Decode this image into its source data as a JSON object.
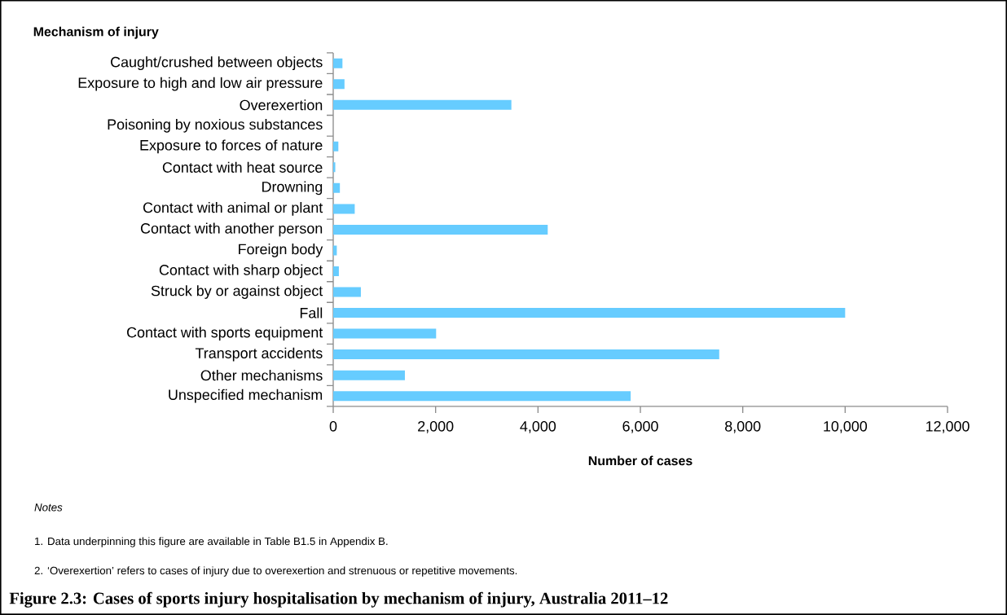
{
  "chart_data": {
    "type": "bar",
    "orientation": "horizontal",
    "title": "Figure 2.3: Cases of sports injury hospitalisation by mechanism of injury, Australia 2011–12",
    "xlabel": "Number of cases",
    "ylabel": "Mechanism of injury",
    "categories": [
      "Caught/crushed between objects",
      "Exposure to high and low air pressure",
      "Overexertion",
      "Poisoning by noxious substances",
      "Exposure to forces of nature",
      "Contact with heat source",
      "Drowning",
      "Contact with animal or plant",
      "Contact with another person",
      "Foreign body",
      "Contact with sharp object",
      "Struck by or against object",
      "Fall",
      "Contact with sports equipment",
      "Transport accidents",
      "Other mechanisms",
      "Unspecified mechanism"
    ],
    "values": [
      180,
      220,
      3480,
      null,
      100,
      40,
      130,
      420,
      4190,
      70,
      110,
      540,
      10000,
      2010,
      7540,
      1400,
      5810
    ],
    "color": "#66ccff",
    "xlim": [
      0,
      12000
    ],
    "xticks": [
      0,
      {
        "value": 2000,
        "label": "2,000"
      },
      {
        "value": 4000,
        "label": "4,000"
      },
      {
        "value": 6000,
        "label": "6,000"
      },
      {
        "value": 8000,
        "label": "8,000"
      },
      {
        "value": 10000,
        "label": "10,000"
      },
      {
        "value": 12000,
        "label": "12,000"
      }
    ],
    "annotations": [
      "Notes",
      "1.      Data underpinning this figure are available in Table B1.5 in Appendix B.",
      "2.      ‘Overexertion’ refers to cases of injury due to overexertion and strenuous or repetitive movements."
    ]
  }
}
